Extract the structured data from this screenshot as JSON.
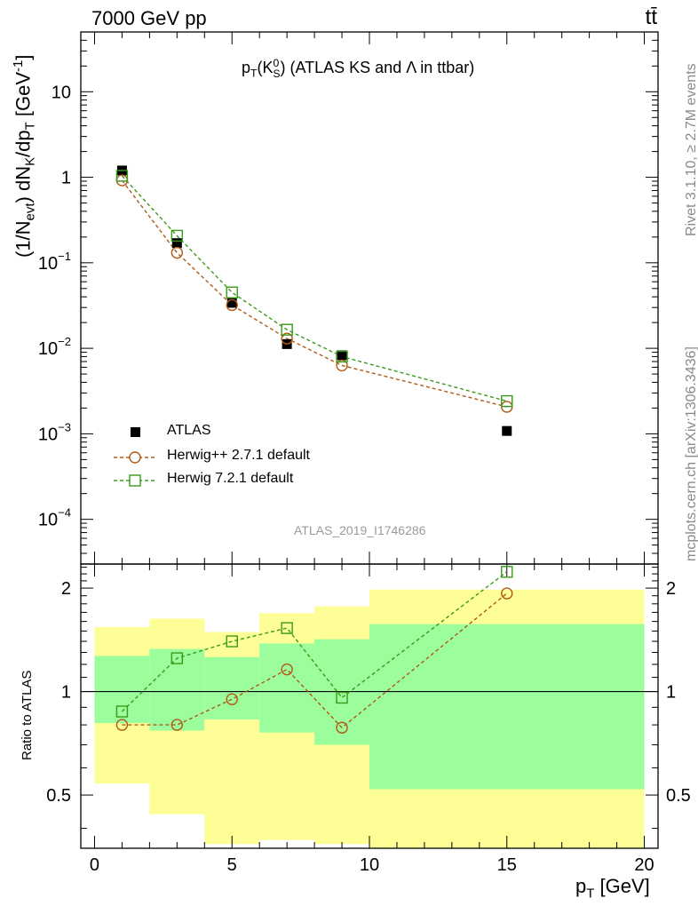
{
  "header": {
    "left": "7000 GeV pp",
    "right": "tt̄",
    "side_rivet": "Rivet 3.1.10, ≥ 2.7M events",
    "side_mcplots": "mcplots.cern.ch [arXiv:1306.3436]",
    "watermark": "ATLAS_2019_I1746286"
  },
  "colors": {
    "data": "#000000",
    "herwigpp": "#b05a18",
    "herwig7": "#3a9a1a",
    "band_inner": "#9cfd9c",
    "band_outer": "#fefe96"
  },
  "chart_data": [
    {
      "type": "scatter",
      "name": "main",
      "title_parts": {
        "p": "p",
        "sub_t": "T",
        "k": "(K",
        "sup_0": "0",
        "sub_s": "S",
        "rest": ") (ATLAS KS and Λ in ttbar)"
      },
      "ylabel_parts": {
        "a": "(1/N",
        "sub_evt": "evt",
        "b": ") dN",
        "sub_k": "K",
        "c": "/dp",
        "sub_t": "T",
        "d": " [GeV",
        "sup": "-1",
        "e": "]"
      },
      "yscale": "log",
      "ylim": [
        3e-05,
        50
      ],
      "xlim": [
        -0.5,
        20.5
      ],
      "y_ticks": [
        {
          "value": 10,
          "base": "10",
          "exp": ""
        },
        {
          "value": 1,
          "base": "1",
          "exp": ""
        },
        {
          "value": 0.1,
          "base": "10",
          "exp": "−1"
        },
        {
          "value": 0.01,
          "base": "10",
          "exp": "−2"
        },
        {
          "value": 0.001,
          "base": "10",
          "exp": "−3"
        },
        {
          "value": 0.0001,
          "base": "10",
          "exp": "−4"
        }
      ],
      "series": [
        {
          "name": "ATLAS",
          "marker": "filled-square",
          "x": [
            1,
            3,
            5,
            7,
            9,
            15
          ],
          "values": [
            1.2,
            0.17,
            0.034,
            0.0112,
            0.0083,
            0.00108
          ]
        },
        {
          "name": "Herwig++ 2.7.1 default",
          "marker": "open-circle",
          "line": "dashed",
          "x": [
            1,
            3,
            5,
            7,
            9,
            15
          ],
          "values": [
            0.92,
            0.131,
            0.032,
            0.013,
            0.0063,
            0.00207
          ]
        },
        {
          "name": "Herwig 7.2.1 default",
          "marker": "open-square",
          "line": "dashed",
          "x": [
            1,
            3,
            5,
            7,
            9,
            15
          ],
          "values": [
            1.04,
            0.207,
            0.045,
            0.0165,
            0.008,
            0.00241
          ]
        }
      ],
      "legend": [
        "ATLAS",
        "Herwig++ 2.7.1 default",
        "Herwig 7.2.1 default"
      ],
      "legend_position": "bottom-left"
    },
    {
      "type": "line",
      "name": "ratio",
      "ylabel": "Ratio to ATLAS",
      "xlabel_parts": {
        "p": "p",
        "sub_t": "T",
        "rest": " [GeV]"
      },
      "yscale": "log",
      "ylim": [
        0.35,
        2.35
      ],
      "xlim": [
        -0.5,
        20.5
      ],
      "y_ticks": [
        0.5,
        1,
        2
      ],
      "y_tick_labels": [
        "0.5",
        "1",
        "2"
      ],
      "x_ticks": [
        0,
        5,
        10,
        15,
        20
      ],
      "x_tick_labels": [
        "0",
        "5",
        "10",
        "15",
        "20"
      ],
      "reference_line": 1,
      "bands": {
        "edges": [
          0,
          2,
          4,
          6,
          8,
          10,
          20
        ],
        "outer_lo": [
          0.54,
          0.44,
          0.36,
          0.37,
          0.36,
          0.35
        ],
        "outer_hi": [
          1.54,
          1.63,
          1.49,
          1.69,
          1.77,
          1.98
        ],
        "inner_lo": [
          0.81,
          0.77,
          0.83,
          0.76,
          0.7,
          0.52
        ],
        "inner_hi": [
          1.27,
          1.33,
          1.26,
          1.38,
          1.42,
          1.57
        ]
      },
      "series": [
        {
          "name": "Herwig++ 2.7.1 default",
          "x": [
            1,
            3,
            5,
            7,
            9,
            15
          ],
          "values": [
            0.8,
            0.8,
            0.95,
            1.16,
            0.785,
            1.93
          ]
        },
        {
          "name": "Herwig 7.2.1 default",
          "x": [
            1,
            3,
            5,
            7,
            9,
            15
          ],
          "values": [
            0.875,
            1.25,
            1.4,
            1.53,
            0.96,
            2.23
          ]
        }
      ]
    }
  ],
  "legend_labels": {
    "atlas": "ATLAS",
    "herwigpp": "Herwig++ 2.7.1 default",
    "herwig7": "Herwig 7.2.1 default"
  }
}
